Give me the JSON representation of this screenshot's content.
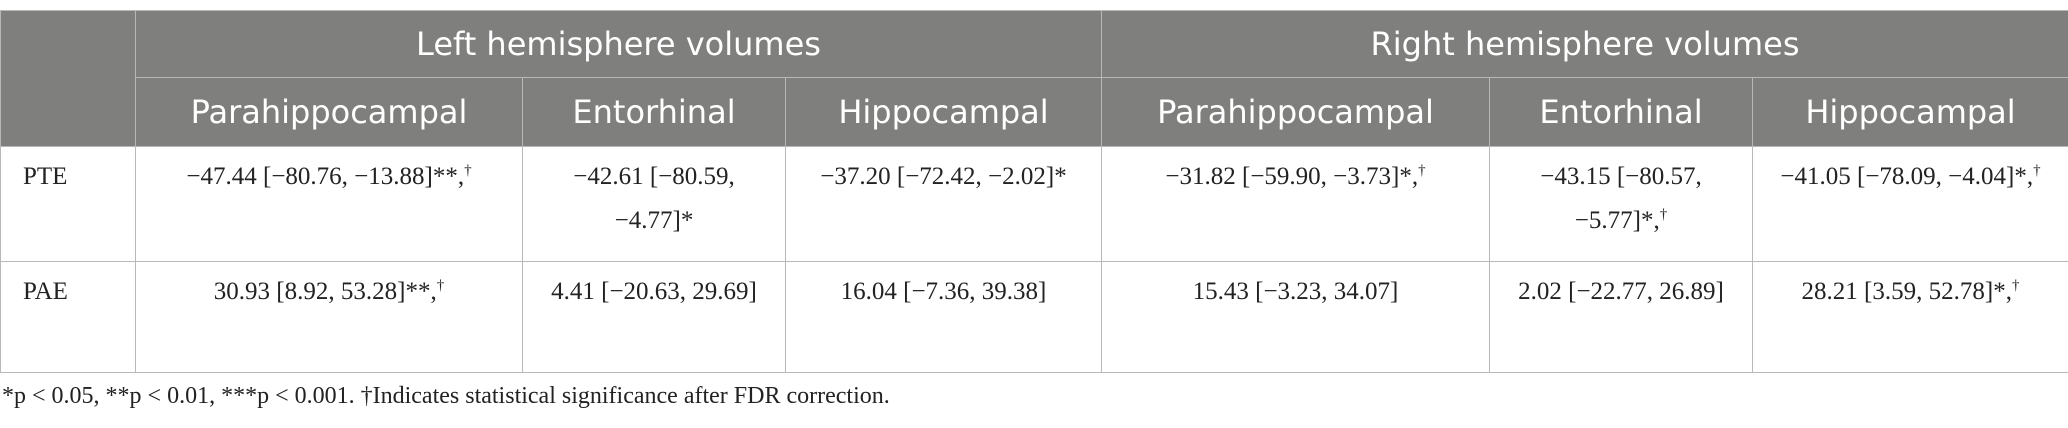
{
  "table": {
    "groups": [
      "Left hemisphere volumes",
      "Right hemisphere volumes"
    ],
    "columns": [
      "Parahippocampal",
      "Entorhinal",
      "Hippocampal",
      "Parahippocampal",
      "Entorhinal",
      "Hippocampal"
    ],
    "rows": [
      {
        "label": "PTE",
        "cells": [
          {
            "text": "−47.44 [−80.76, −13.88]**,",
            "sup": "†"
          },
          {
            "text": "−42.61 [−80.59, −4.77]*"
          },
          {
            "text": "−37.20 [−72.42, −2.02]*"
          },
          {
            "text": "−31.82 [−59.90, −3.73]*,",
            "sup": "†"
          },
          {
            "text": "−43.15 [−80.57, −5.77]*,",
            "sup": "†"
          },
          {
            "text": "−41.05 [−78.09, −4.04]*,",
            "sup": "†"
          }
        ]
      },
      {
        "label": "PAE",
        "cells": [
          {
            "text": "30.93 [8.92, 53.28]**,",
            "sup": "†"
          },
          {
            "text": "4.41 [−20.63, 29.69]"
          },
          {
            "text": "16.04 [−7.36, 39.38]"
          },
          {
            "text": "15.43 [−3.23, 34.07]"
          },
          {
            "text": "2.02 [−22.77, 26.89]"
          },
          {
            "text": "28.21 [3.59, 52.78]*,",
            "sup": "†"
          }
        ]
      }
    ]
  },
  "footnote": "*p < 0.05, **p < 0.01, ***p < 0.001. †Indicates statistical significance after FDR correction."
}
